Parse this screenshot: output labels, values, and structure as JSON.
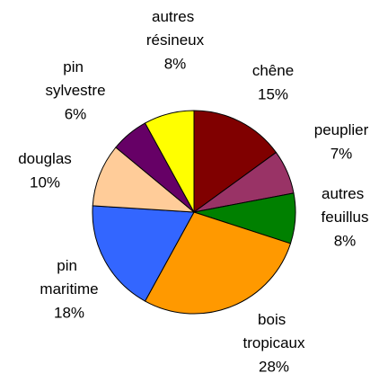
{
  "chart_data": {
    "type": "pie",
    "categories": [
      "chêne",
      "peuplier",
      "autres feuillus",
      "bois tropicaux",
      "pin maritime",
      "douglas",
      "pin sylvestre",
      "autres résineux"
    ],
    "values": [
      15,
      7,
      8,
      28,
      18,
      10,
      6,
      8
    ],
    "value_labels": [
      "15%",
      "7%",
      "8%",
      "28%",
      "18%",
      "10%",
      "6%",
      "8%"
    ],
    "colors": [
      "#800000",
      "#993366",
      "#008000",
      "#FF9900",
      "#3366FF",
      "#FFCC99",
      "#660066",
      "#FFFF00"
    ]
  }
}
